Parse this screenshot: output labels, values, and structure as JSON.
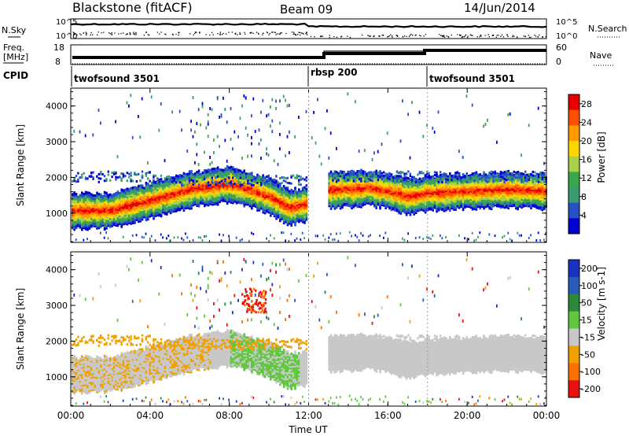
{
  "header": {
    "station": "Blackstone (fitACF)",
    "beam": "Beam 09",
    "date": "14/Jun/2014"
  },
  "noise_panel": {
    "left_label": "N.Sky",
    "right_label": "N.Search",
    "tick_top": "10^5",
    "tick_bottom": "10^0"
  },
  "freq_panel": {
    "left_label_line1": "Freq.",
    "left_label_line2": "[MHz]",
    "right_label": "Nave",
    "left_ticks": [
      "18",
      "8"
    ],
    "right_ticks": [
      "60",
      "0"
    ]
  },
  "cpid": {
    "label": "CPID",
    "segments": [
      {
        "name": "twofsound 3501",
        "start_hour": 0
      },
      {
        "name": "rbsp 200",
        "start_hour": 12
      },
      {
        "name": "twofsound 3501",
        "start_hour": 18
      }
    ]
  },
  "colors": {
    "power_scale": [
      "#0000d0",
      "#2a50c8",
      "#3a9a70",
      "#3aa84a",
      "#a8d048",
      "#ffd700",
      "#ff9a00",
      "#ff5000",
      "#e80000"
    ],
    "velocity_scale": [
      "#1a30c0",
      "#2a5ab8",
      "#2a8a3a",
      "#60c840",
      "#c8c8c8",
      "#f0a000",
      "#ff7000",
      "#e81010"
    ]
  },
  "chart_data": [
    {
      "type": "heatmap",
      "title": "Power",
      "ylabel": "Slant Range [km]",
      "ylim": [
        180,
        4500
      ],
      "yticks": [
        1000,
        2000,
        3000,
        4000
      ],
      "xlim_hours": [
        0,
        24
      ],
      "colorbar_label": "Power [dB]",
      "colorbar_ticks": [
        "4",
        "8",
        "12",
        "16",
        "20",
        "24",
        "28"
      ],
      "colorbar_range": [
        0,
        30
      ],
      "main_band_center_km": [
        [
          0,
          1100
        ],
        [
          2,
          1120
        ],
        [
          4,
          1400
        ],
        [
          6,
          1700
        ],
        [
          8,
          1850
        ],
        [
          9,
          1700
        ],
        [
          10,
          1500
        ],
        [
          11,
          1200
        ],
        [
          12,
          1300
        ],
        [
          13,
          1700
        ],
        [
          14,
          1700
        ],
        [
          15,
          1750
        ],
        [
          16,
          1650
        ],
        [
          17,
          1500
        ],
        [
          18,
          1600
        ],
        [
          20,
          1650
        ],
        [
          22,
          1700
        ],
        [
          24,
          1650
        ]
      ]
    },
    {
      "type": "heatmap",
      "title": "Velocity",
      "ylabel": "Slant Range [km]",
      "ylim": [
        180,
        4500
      ],
      "yticks": [
        1000,
        2000,
        3000,
        4000
      ],
      "xlim_hours": [
        0,
        24
      ],
      "xlabel": "Time UT",
      "xticks": [
        "00:00",
        "04:00",
        "08:00",
        "12:00",
        "16:00",
        "20:00",
        "00:00"
      ],
      "colorbar_label": "Velocity [m s-1]",
      "colorbar_ticks": [
        "200",
        "100",
        "50",
        "15",
        "-15",
        "-50",
        "-100",
        "-200"
      ]
    }
  ]
}
